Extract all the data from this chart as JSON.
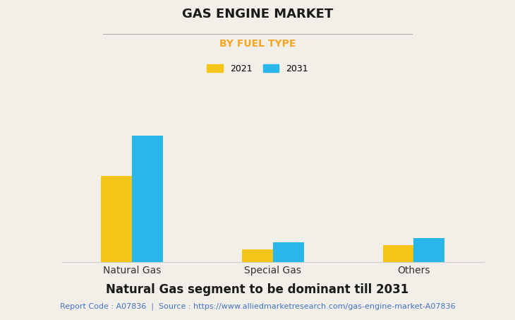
{
  "title": "GAS ENGINE MARKET",
  "subtitle": "BY FUEL TYPE",
  "categories": [
    "Natural Gas",
    "Special Gas",
    "Others"
  ],
  "values_2021": [
    6.5,
    1.0,
    1.3
  ],
  "values_2031": [
    9.5,
    1.5,
    1.85
  ],
  "color_2021": "#F5C518",
  "color_2031": "#29B6E8",
  "legend_labels": [
    "2021",
    "2031"
  ],
  "subtitle_color": "#F5A623",
  "background_color": "#F2EFE9",
  "footer_text": "Natural Gas segment to be dominant till 2031",
  "source_text": "Report Code : A07836  |  Source : https://www.alliedmarketresearch.com/gas-engine-market-A07836",
  "source_color": "#4472C4",
  "grid_color": "#DEDAD4",
  "ylim": [
    0,
    12
  ],
  "bar_width": 0.22,
  "title_fontsize": 13,
  "subtitle_fontsize": 10,
  "footer_fontsize": 12,
  "source_fontsize": 8,
  "xtick_fontsize": 10
}
